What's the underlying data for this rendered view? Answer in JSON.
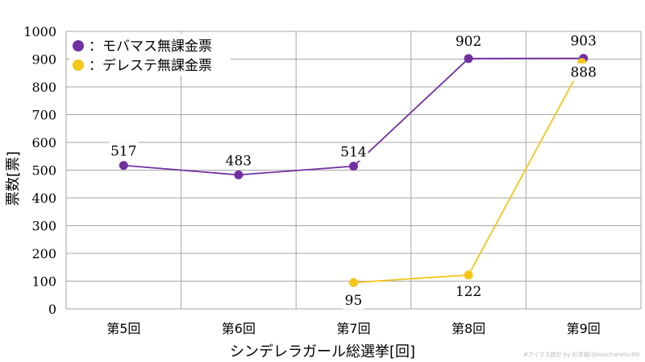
{
  "chart_data": {
    "type": "line",
    "categories": [
      "第5回",
      "第6回",
      "第7回",
      "第8回",
      "第9回"
    ],
    "series": [
      {
        "name": "モバマス無課金票",
        "color": "#7030a0",
        "values": [
          517,
          483,
          514,
          902,
          903
        ]
      },
      {
        "name": "デレステ無課金票",
        "color": "#f5c518",
        "values": [
          null,
          null,
          95,
          122,
          888
        ]
      }
    ],
    "xlabel": "シンデレラガール総選挙[回]",
    "ylabel": "票数[票]",
    "ylim": [
      0,
      1000
    ],
    "yticks": [
      0,
      100,
      200,
      300,
      400,
      500,
      600,
      700,
      800,
      900,
      1000
    ],
    "legend_placement": "top-left",
    "legend_prefix": "：",
    "grid": true
  },
  "credit": "#アイマス統計 by 紅茶猫(@kouchaneko39)"
}
